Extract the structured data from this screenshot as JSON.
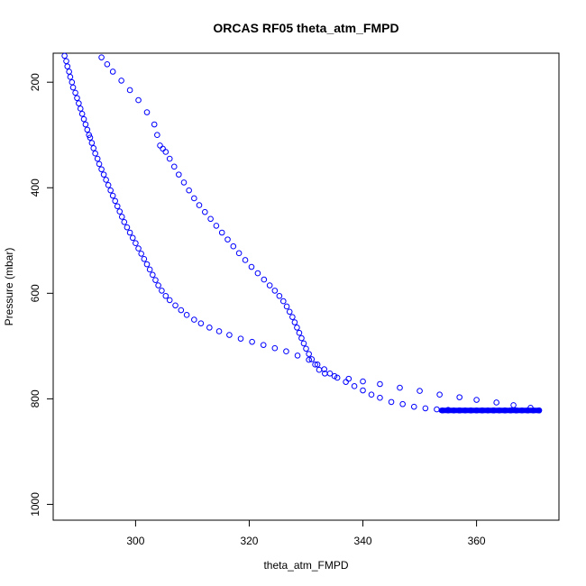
{
  "chart_data": {
    "type": "scatter",
    "title": "ORCAS RF05 theta_atm_FMPD",
    "xlabel": "theta_atm_FMPD",
    "ylabel": "Pressure (mbar)",
    "xlim": [
      285.5,
      374.5
    ],
    "ylim": [
      1030,
      145
    ],
    "y_reversed": true,
    "grid": false,
    "legend": "none",
    "marker": "open-circle",
    "color": "#0000ff",
    "x_ticks": [
      300,
      320,
      340,
      360
    ],
    "y_ticks": [
      200,
      400,
      600,
      800,
      1000
    ],
    "x_tick_labels": [
      "300",
      "320",
      "340",
      "360"
    ],
    "y_tick_labels": [
      "200",
      "400",
      "600",
      "800",
      "1000"
    ],
    "series": [
      {
        "points": [
          [
            287.5,
            150
          ],
          [
            287.8,
            160
          ],
          [
            288.0,
            170
          ],
          [
            288.3,
            180
          ],
          [
            288.5,
            190
          ],
          [
            288.8,
            200
          ],
          [
            289.0,
            210
          ],
          [
            289.4,
            220
          ],
          [
            289.7,
            230
          ],
          [
            290.0,
            240
          ],
          [
            290.3,
            250
          ],
          [
            290.6,
            260
          ],
          [
            290.9,
            270
          ],
          [
            291.2,
            280
          ],
          [
            291.5,
            290
          ],
          [
            291.8,
            300
          ],
          [
            292.0,
            305
          ],
          [
            292.3,
            315
          ],
          [
            292.6,
            325
          ],
          [
            292.9,
            335
          ],
          [
            293.3,
            345
          ],
          [
            293.6,
            355
          ],
          [
            294.0,
            365
          ],
          [
            294.4,
            375
          ],
          [
            294.8,
            385
          ],
          [
            295.2,
            395
          ],
          [
            295.6,
            405
          ],
          [
            296.0,
            415
          ],
          [
            296.4,
            425
          ],
          [
            296.8,
            435
          ],
          [
            297.2,
            445
          ],
          [
            297.6,
            455
          ],
          [
            298.0,
            465
          ],
          [
            298.5,
            475
          ],
          [
            299.0,
            485
          ],
          [
            299.5,
            495
          ],
          [
            300.0,
            505
          ],
          [
            300.5,
            515
          ],
          [
            301.0,
            525
          ],
          [
            301.5,
            535
          ],
          [
            302.0,
            545
          ],
          [
            302.5,
            555
          ],
          [
            303.0,
            565
          ],
          [
            303.5,
            575
          ],
          [
            304.0,
            585
          ],
          [
            304.6,
            595
          ],
          [
            305.3,
            605
          ],
          [
            306.0,
            613
          ],
          [
            307.0,
            623
          ],
          [
            308.0,
            632
          ],
          [
            309.0,
            641
          ],
          [
            310.3,
            650
          ],
          [
            311.5,
            657
          ],
          [
            313.0,
            665
          ],
          [
            314.7,
            672
          ],
          [
            316.5,
            679
          ],
          [
            318.5,
            686
          ],
          [
            320.5,
            692
          ],
          [
            322.5,
            698
          ],
          [
            324.5,
            704
          ],
          [
            326.5,
            710
          ],
          [
            328.5,
            718
          ],
          [
            330.5,
            726
          ],
          [
            332.0,
            735
          ],
          [
            333.2,
            744
          ],
          [
            334.2,
            752
          ],
          [
            335.5,
            760
          ],
          [
            337.0,
            768
          ],
          [
            338.5,
            776
          ],
          [
            340.0,
            784
          ],
          [
            341.5,
            792
          ],
          [
            343.0,
            798
          ],
          [
            345.0,
            806
          ],
          [
            347.0,
            810
          ],
          [
            349.0,
            815
          ],
          [
            351.0,
            818
          ],
          [
            353.0,
            820
          ],
          [
            355.0,
            821
          ],
          [
            357.0,
            822
          ],
          [
            359.0,
            822
          ],
          [
            361.0,
            822
          ],
          [
            363.0,
            822
          ],
          [
            365.0,
            822
          ],
          [
            367.0,
            822
          ],
          [
            369.0,
            822
          ],
          [
            371.0,
            822
          ]
        ]
      },
      {
        "points": [
          [
            294.0,
            153
          ],
          [
            295.0,
            166
          ],
          [
            296.0,
            180
          ],
          [
            297.5,
            197
          ],
          [
            299.0,
            215
          ],
          [
            300.5,
            234
          ],
          [
            302.0,
            257
          ],
          [
            303.3,
            280
          ],
          [
            303.8,
            300
          ],
          [
            304.3,
            320
          ],
          [
            304.8,
            326
          ],
          [
            305.3,
            332
          ],
          [
            306.0,
            345
          ],
          [
            306.8,
            360
          ],
          [
            307.6,
            375
          ],
          [
            308.5,
            390
          ],
          [
            309.4,
            405
          ],
          [
            310.3,
            420
          ],
          [
            311.2,
            433
          ],
          [
            312.2,
            446
          ],
          [
            313.2,
            459
          ],
          [
            314.2,
            472
          ],
          [
            315.2,
            485
          ],
          [
            316.2,
            498
          ],
          [
            317.2,
            511
          ],
          [
            318.2,
            524
          ],
          [
            319.3,
            537
          ],
          [
            320.4,
            550
          ],
          [
            321.5,
            562
          ],
          [
            322.6,
            574
          ],
          [
            323.6,
            585
          ],
          [
            324.5,
            595
          ],
          [
            325.3,
            605
          ],
          [
            326.0,
            615
          ],
          [
            326.6,
            625
          ],
          [
            327.1,
            635
          ],
          [
            327.6,
            645
          ],
          [
            328.0,
            655
          ],
          [
            328.4,
            665
          ],
          [
            328.8,
            675
          ],
          [
            329.2,
            685
          ],
          [
            329.6,
            695
          ],
          [
            330.0,
            705
          ],
          [
            330.5,
            715
          ],
          [
            331.0,
            725
          ],
          [
            331.6,
            735
          ],
          [
            332.3,
            745
          ],
          [
            333.3,
            752
          ],
          [
            335.0,
            757
          ],
          [
            337.5,
            762
          ],
          [
            340.0,
            767
          ],
          [
            343.0,
            772
          ],
          [
            346.5,
            779
          ],
          [
            350.0,
            785
          ],
          [
            353.5,
            792
          ],
          [
            357.0,
            797
          ],
          [
            360.0,
            802
          ],
          [
            363.5,
            807
          ],
          [
            366.5,
            812
          ],
          [
            369.5,
            817
          ],
          [
            354.0,
            822
          ],
          [
            355.0,
            822
          ],
          [
            356.0,
            822
          ],
          [
            357.0,
            822
          ],
          [
            358.0,
            822
          ],
          [
            359.0,
            822
          ],
          [
            360.0,
            822
          ],
          [
            361.0,
            822
          ],
          [
            362.0,
            822
          ],
          [
            363.0,
            822
          ],
          [
            364.0,
            822
          ],
          [
            365.0,
            822
          ],
          [
            366.0,
            822
          ],
          [
            367.0,
            822
          ],
          [
            368.0,
            822
          ],
          [
            369.0,
            822
          ],
          [
            370.0,
            822
          ],
          [
            371.0,
            822
          ]
        ]
      }
    ]
  }
}
